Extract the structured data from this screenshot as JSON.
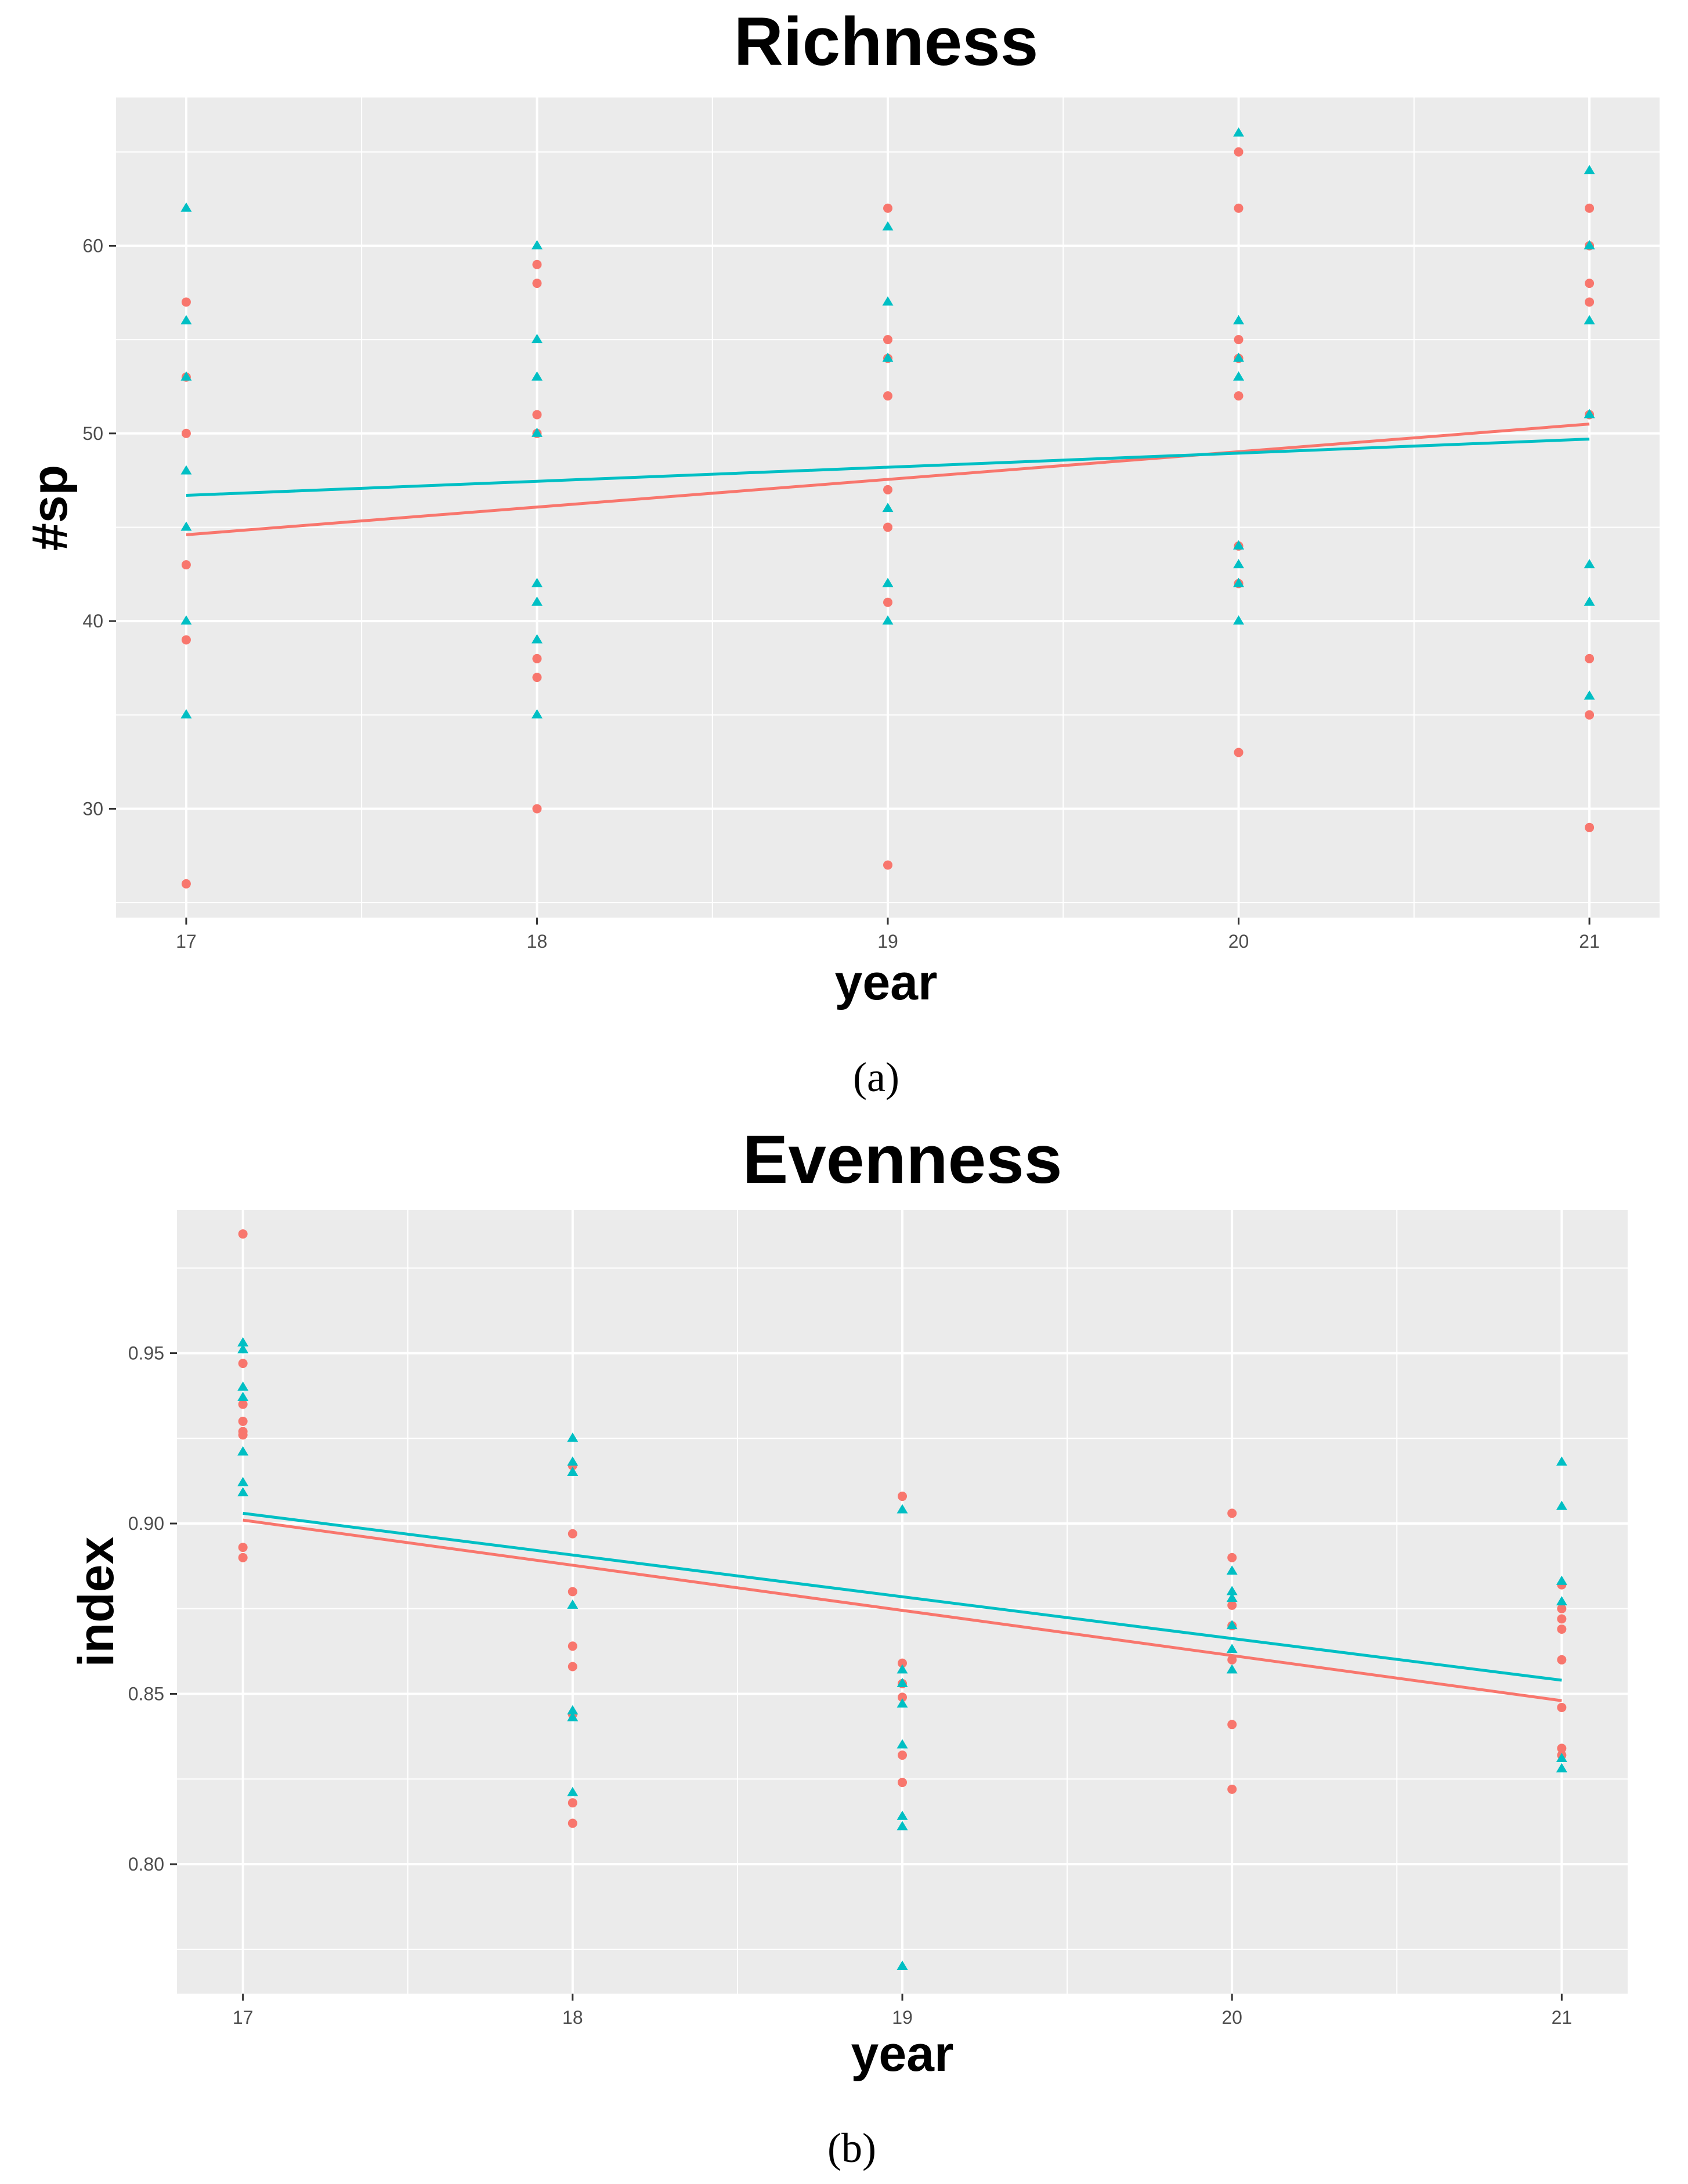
{
  "chart_data": [
    {
      "type": "scatter",
      "title": "Richness",
      "xlabel": "year",
      "ylabel": "#sp",
      "caption": "(a)",
      "xlim": [
        16.8,
        21.2
      ],
      "ylim": [
        24.2,
        67.9
      ],
      "xticks": [
        17,
        18,
        19,
        20,
        21
      ],
      "xtick_labels": [
        "17",
        "18",
        "19",
        "20",
        "21"
      ],
      "yticks": [
        30,
        40,
        50,
        60
      ],
      "ytick_labels": [
        "30",
        "40",
        "50",
        "60"
      ],
      "grid": true,
      "background": "#ebebeb",
      "series": [
        {
          "name": "group-red",
          "color": "#f8766d",
          "marker": "circle",
          "points": [
            [
              17,
              57
            ],
            [
              17,
              53
            ],
            [
              17,
              50
            ],
            [
              17,
              43
            ],
            [
              17,
              39
            ],
            [
              17,
              26
            ],
            [
              18,
              59
            ],
            [
              18,
              58
            ],
            [
              18,
              51
            ],
            [
              18,
              50
            ],
            [
              18,
              38
            ],
            [
              18,
              37
            ],
            [
              18,
              30
            ],
            [
              19,
              62
            ],
            [
              19,
              55
            ],
            [
              19,
              54
            ],
            [
              19,
              52
            ],
            [
              19,
              47
            ],
            [
              19,
              45
            ],
            [
              19,
              41
            ],
            [
              19,
              27
            ],
            [
              20,
              65
            ],
            [
              20,
              62
            ],
            [
              20,
              55
            ],
            [
              20,
              54
            ],
            [
              20,
              52
            ],
            [
              20,
              44
            ],
            [
              20,
              42
            ],
            [
              20,
              33
            ],
            [
              21,
              62
            ],
            [
              21,
              60
            ],
            [
              21,
              58
            ],
            [
              21,
              57
            ],
            [
              21,
              51
            ],
            [
              21,
              38
            ],
            [
              21,
              35
            ],
            [
              21,
              29
            ]
          ],
          "trend": [
            [
              17,
              44.6
            ],
            [
              21,
              50.5
            ]
          ]
        },
        {
          "name": "group-teal",
          "color": "#00bfc4",
          "marker": "triangle",
          "points": [
            [
              17,
              62
            ],
            [
              17,
              56
            ],
            [
              17,
              53
            ],
            [
              17,
              48
            ],
            [
              17,
              45
            ],
            [
              17,
              40
            ],
            [
              17,
              35
            ],
            [
              18,
              60
            ],
            [
              18,
              55
            ],
            [
              18,
              53
            ],
            [
              18,
              50
            ],
            [
              18,
              42
            ],
            [
              18,
              41
            ],
            [
              18,
              39
            ],
            [
              18,
              35
            ],
            [
              19,
              61
            ],
            [
              19,
              57
            ],
            [
              19,
              54
            ],
            [
              19,
              46
            ],
            [
              19,
              42
            ],
            [
              19,
              40
            ],
            [
              20,
              66
            ],
            [
              20,
              56
            ],
            [
              20,
              54
            ],
            [
              20,
              53
            ],
            [
              20,
              44
            ],
            [
              20,
              43
            ],
            [
              20,
              42
            ],
            [
              20,
              40
            ],
            [
              21,
              64
            ],
            [
              21,
              60
            ],
            [
              21,
              56
            ],
            [
              21,
              51
            ],
            [
              21,
              43
            ],
            [
              21,
              41
            ],
            [
              21,
              36
            ]
          ],
          "trend": [
            [
              17,
              46.7
            ],
            [
              21,
              49.7
            ]
          ]
        }
      ]
    },
    {
      "type": "scatter",
      "title": "Evenness",
      "xlabel": "year",
      "ylabel": "index",
      "caption": "(b)",
      "xlim": [
        16.8,
        21.2
      ],
      "ylim": [
        0.762,
        0.992
      ],
      "xticks": [
        17,
        18,
        19,
        20,
        21
      ],
      "xtick_labels": [
        "17",
        "18",
        "19",
        "20",
        "21"
      ],
      "yticks": [
        0.8,
        0.85,
        0.9,
        0.95
      ],
      "ytick_labels": [
        "0.80",
        "0.85",
        "0.90",
        "0.95"
      ],
      "grid": true,
      "background": "#ebebeb",
      "series": [
        {
          "name": "group-red",
          "color": "#f8766d",
          "marker": "circle",
          "points": [
            [
              17,
              0.985
            ],
            [
              17,
              0.947
            ],
            [
              17,
              0.935
            ],
            [
              17,
              0.93
            ],
            [
              17,
              0.927
            ],
            [
              17,
              0.926
            ],
            [
              17,
              0.893
            ],
            [
              17,
              0.89
            ],
            [
              18,
              0.917
            ],
            [
              18,
              0.897
            ],
            [
              18,
              0.88
            ],
            [
              18,
              0.864
            ],
            [
              18,
              0.858
            ],
            [
              18,
              0.844
            ],
            [
              18,
              0.818
            ],
            [
              18,
              0.812
            ],
            [
              19,
              0.908
            ],
            [
              19,
              0.859
            ],
            [
              19,
              0.853
            ],
            [
              19,
              0.849
            ],
            [
              19,
              0.832
            ],
            [
              19,
              0.824
            ],
            [
              20,
              0.903
            ],
            [
              20,
              0.89
            ],
            [
              20,
              0.876
            ],
            [
              20,
              0.87
            ],
            [
              20,
              0.86
            ],
            [
              20,
              0.841
            ],
            [
              20,
              0.822
            ],
            [
              21,
              0.882
            ],
            [
              21,
              0.875
            ],
            [
              21,
              0.872
            ],
            [
              21,
              0.869
            ],
            [
              21,
              0.86
            ],
            [
              21,
              0.846
            ],
            [
              21,
              0.834
            ],
            [
              21,
              0.832
            ]
          ],
          "trend": [
            [
              17,
              0.901
            ],
            [
              21,
              0.848
            ]
          ]
        },
        {
          "name": "group-teal",
          "color": "#00bfc4",
          "marker": "triangle",
          "points": [
            [
              17,
              0.953
            ],
            [
              17,
              0.951
            ],
            [
              17,
              0.94
            ],
            [
              17,
              0.937
            ],
            [
              17,
              0.921
            ],
            [
              17,
              0.912
            ],
            [
              17,
              0.909
            ],
            [
              18,
              0.925
            ],
            [
              18,
              0.918
            ],
            [
              18,
              0.915
            ],
            [
              18,
              0.876
            ],
            [
              18,
              0.845
            ],
            [
              18,
              0.843
            ],
            [
              18,
              0.821
            ],
            [
              19,
              0.904
            ],
            [
              19,
              0.857
            ],
            [
              19,
              0.853
            ],
            [
              19,
              0.847
            ],
            [
              19,
              0.835
            ],
            [
              19,
              0.814
            ],
            [
              19,
              0.811
            ],
            [
              19,
              0.77
            ],
            [
              20,
              0.886
            ],
            [
              20,
              0.88
            ],
            [
              20,
              0.878
            ],
            [
              20,
              0.87
            ],
            [
              20,
              0.863
            ],
            [
              20,
              0.857
            ],
            [
              21,
              0.918
            ],
            [
              21,
              0.905
            ],
            [
              21,
              0.883
            ],
            [
              21,
              0.877
            ],
            [
              21,
              0.831
            ],
            [
              21,
              0.828
            ]
          ],
          "trend": [
            [
              17,
              0.903
            ],
            [
              21,
              0.854
            ]
          ]
        }
      ]
    }
  ]
}
